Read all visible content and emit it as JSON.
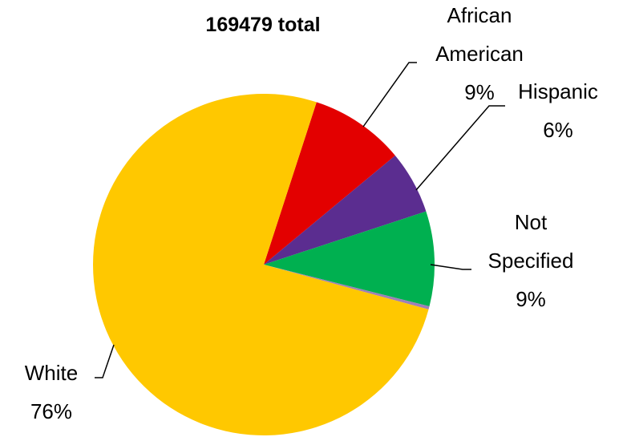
{
  "chart_data": {
    "type": "pie",
    "title": "169479 total",
    "start_angle_deg": 18,
    "direction": "clockwise",
    "slices": [
      {
        "label_lines": [
          "African",
          "American",
          "9%"
        ],
        "value": 9,
        "color": "#E30000"
      },
      {
        "label_lines": [
          "Hispanic",
          "6%"
        ],
        "value": 6,
        "color": "#5B2D90"
      },
      {
        "label_lines": [
          "Not",
          "Specified",
          "9%"
        ],
        "value": 9,
        "color": "#00B050"
      },
      {
        "label_lines": [],
        "value": 0.3,
        "color": "#9E7FB8"
      },
      {
        "label_lines": [
          "White",
          "76%"
        ],
        "value": 76,
        "color": "#FFC800"
      }
    ]
  }
}
